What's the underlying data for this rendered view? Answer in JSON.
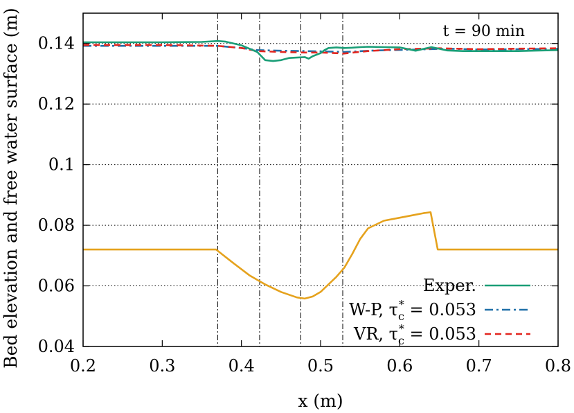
{
  "chart_data": {
    "type": "line",
    "title": "",
    "xlabel": "x (m)",
    "ylabel": "Bed elevation and free water surface (m)",
    "xlim": [
      0.2,
      0.8
    ],
    "ylim": [
      0.04,
      0.15
    ],
    "x_ticks": [
      0.2,
      0.3,
      0.4,
      0.5,
      0.6,
      0.7,
      0.8
    ],
    "x_tick_labels": [
      "0.2",
      "0.3",
      "0.4",
      "0.5",
      "0.6",
      "0.7",
      "0.8"
    ],
    "y_ticks": [
      0.04,
      0.06,
      0.08,
      0.1,
      0.12,
      0.14
    ],
    "y_tick_labels": [
      "0.04",
      "0.06",
      "0.08",
      "0.1",
      "0.12",
      "0.14"
    ],
    "grid": "horizontal dotted",
    "legend_position": "bottom-right",
    "annotation": "t = 90 min",
    "vertical_lines": [
      0.37,
      0.423,
      0.475,
      0.528
    ],
    "legend": [
      {
        "label": "Exper.",
        "sub": "",
        "sup": "",
        "tail": "",
        "color": "#1a9e77",
        "dash": "solid"
      },
      {
        "label": "W-P, τ",
        "sub": "c",
        "sup": "*",
        "tail": " = 0.053",
        "color": "#1f6fa8",
        "dash": "dashdot"
      },
      {
        "label": "VR, τ",
        "sub": "c",
        "sup": "*",
        "tail": " = 0.053",
        "color": "#e3261f",
        "dash": "dashed"
      }
    ],
    "series": [
      {
        "name": "Exper.",
        "color": "#1a9e77",
        "dash": "solid",
        "x": [
          0.2,
          0.3,
          0.35,
          0.37,
          0.38,
          0.4,
          0.42,
          0.43,
          0.44,
          0.45,
          0.46,
          0.48,
          0.485,
          0.49,
          0.5,
          0.505,
          0.51,
          0.52,
          0.53,
          0.54,
          0.55,
          0.56,
          0.58,
          0.6,
          0.62,
          0.64,
          0.66,
          0.68,
          0.7,
          0.75,
          0.8
        ],
        "y": [
          0.1404,
          0.1404,
          0.1405,
          0.1408,
          0.1406,
          0.1394,
          0.1372,
          0.1345,
          0.1342,
          0.1345,
          0.1352,
          0.1355,
          0.135,
          0.1358,
          0.1368,
          0.1378,
          0.1385,
          0.1387,
          0.1385,
          0.1386,
          0.1388,
          0.1389,
          0.1388,
          0.1387,
          0.1376,
          0.1388,
          0.1377,
          0.1375,
          0.1375,
          0.1375,
          0.1378
        ]
      },
      {
        "name": "W-P, τc* = 0.053",
        "color": "#1f6fa8",
        "dash": "dashdot",
        "x": [
          0.2,
          0.3,
          0.37,
          0.4,
          0.42,
          0.45,
          0.5,
          0.53,
          0.57,
          0.62,
          0.66,
          0.7,
          0.75,
          0.8
        ],
        "y": [
          0.1392,
          0.1392,
          0.1392,
          0.1385,
          0.1378,
          0.1376,
          0.1374,
          0.1372,
          0.1377,
          0.138,
          0.1383,
          0.138,
          0.1381,
          0.1382
        ]
      },
      {
        "name": "VR, τc* = 0.053",
        "color": "#e3261f",
        "dash": "dashed",
        "x": [
          0.2,
          0.3,
          0.37,
          0.4,
          0.42,
          0.45,
          0.48,
          0.5,
          0.53,
          0.56,
          0.6,
          0.65,
          0.7,
          0.75,
          0.8
        ],
        "y": [
          0.1395,
          0.1395,
          0.1392,
          0.1385,
          0.1375,
          0.1372,
          0.137,
          0.137,
          0.1367,
          0.1375,
          0.1381,
          0.1384,
          0.1381,
          0.1383,
          0.1384
        ]
      },
      {
        "name": "",
        "color": "#e5a21d",
        "dash": "solid",
        "x": [
          0.2,
          0.3,
          0.368,
          0.39,
          0.41,
          0.43,
          0.45,
          0.47,
          0.48,
          0.49,
          0.5,
          0.51,
          0.52,
          0.53,
          0.54,
          0.55,
          0.56,
          0.58,
          0.6,
          0.62,
          0.63,
          0.639,
          0.648,
          0.7,
          0.8
        ],
        "y": [
          0.072,
          0.072,
          0.072,
          0.0675,
          0.0635,
          0.0605,
          0.058,
          0.0562,
          0.0558,
          0.0565,
          0.058,
          0.0605,
          0.063,
          0.066,
          0.0705,
          0.0755,
          0.079,
          0.0815,
          0.0825,
          0.0835,
          0.084,
          0.0843,
          0.072,
          0.072,
          0.072
        ]
      }
    ]
  }
}
